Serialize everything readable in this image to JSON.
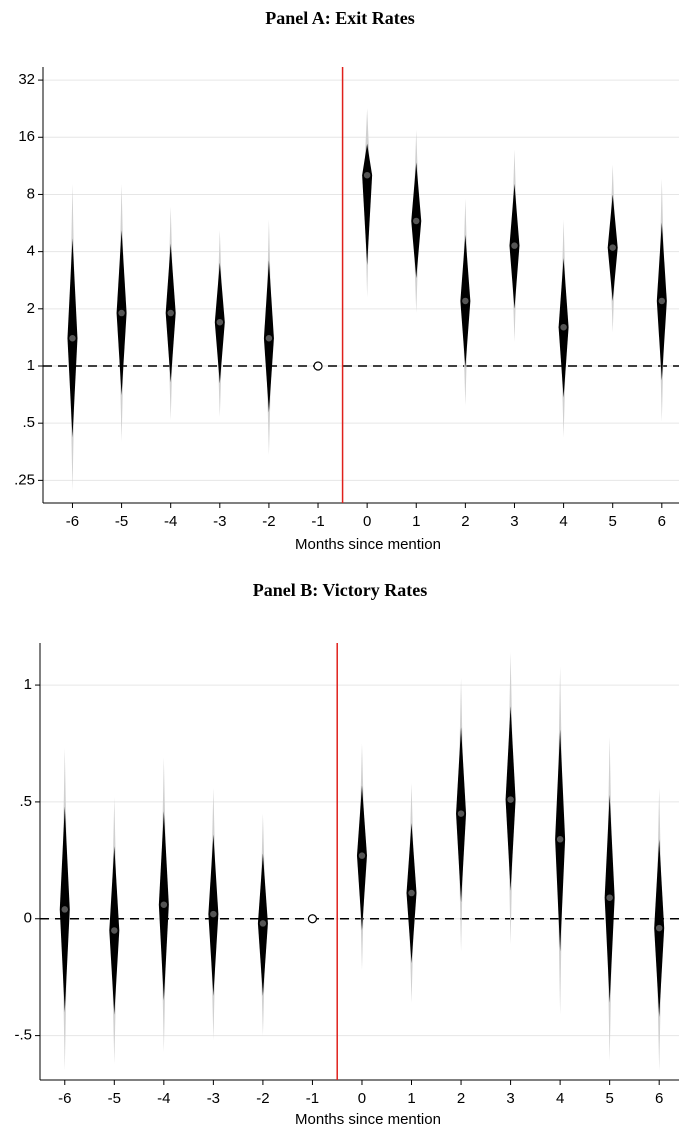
{
  "chart_data": [
    {
      "type": "interval",
      "title": "Panel A: Exit Rates",
      "x_label": "Months since mention",
      "log_y": true,
      "x": [
        -6,
        -5,
        -4,
        -3,
        -2,
        -1,
        0,
        1,
        2,
        3,
        4,
        5,
        6
      ],
      "xlim": [
        -6.6,
        6.35
      ],
      "xticks": [
        -6,
        -5,
        -4,
        -3,
        -2,
        -1,
        0,
        1,
        2,
        3,
        4,
        5,
        6
      ],
      "ylim": [
        0.19,
        37.5
      ],
      "yticks": [
        {
          "value": 0.25,
          "label": ".25"
        },
        {
          "value": 0.5,
          "label": ".5"
        },
        1,
        2,
        4,
        8,
        16,
        32
      ],
      "grid": true,
      "hline": 1,
      "vline": -0.5,
      "vline_color": "#e0201b",
      "series": [
        {
          "color": "#000000",
          "values": [
            1.4,
            1.9,
            1.9,
            1.7,
            1.4,
            1,
            10.1,
            5.8,
            2.2,
            4.3,
            1.6,
            4.2,
            2.2
          ],
          "inner_low": [
            0.42,
            0.7,
            0.82,
            0.81,
            0.57,
            null,
            3.4,
            2.9,
            0.98,
            2.0,
            0.68,
            2.2,
            0.84
          ],
          "inner_high": [
            4.7,
            5.2,
            4.4,
            3.5,
            3.6,
            null,
            14.8,
            11.8,
            4.9,
            9.1,
            3.7,
            8.0,
            5.7
          ],
          "outer_low": [
            0.22,
            0.4,
            0.52,
            0.54,
            0.34,
            null,
            2.3,
            1.9,
            0.62,
            1.34,
            0.42,
            1.5,
            0.51
          ],
          "outer_high": [
            9.1,
            9.1,
            6.9,
            5.2,
            5.9,
            null,
            22.7,
            17.5,
            7.6,
            13.8,
            5.9,
            11.5,
            9.7
          ]
        }
      ]
    },
    {
      "type": "interval",
      "title": "Panel B: Victory Rates",
      "x_label": "Months since mention",
      "log_y": false,
      "x": [
        -6,
        -5,
        -4,
        -3,
        -2,
        -1,
        0,
        1,
        2,
        3,
        4,
        5,
        6
      ],
      "xlim": [
        -6.5,
        6.4
      ],
      "xticks": [
        -6,
        -5,
        -4,
        -3,
        -2,
        -1,
        0,
        1,
        2,
        3,
        4,
        5,
        6
      ],
      "ylim": [
        -0.69,
        1.18
      ],
      "yticks": [
        {
          "value": -0.5,
          "label": "-.5"
        },
        0,
        {
          "value": 0.5,
          "label": ".5"
        },
        1
      ],
      "grid": true,
      "hline": 0,
      "vline": -0.5,
      "vline_color": "#e0201b",
      "series": [
        {
          "color": "#000000",
          "values": [
            0.04,
            -0.05,
            0.06,
            0.02,
            -0.02,
            0,
            0.27,
            0.11,
            0.45,
            0.51,
            0.34,
            0.09,
            -0.04
          ],
          "inner_low": [
            -0.4,
            -0.41,
            -0.35,
            -0.33,
            -0.33,
            null,
            -0.05,
            -0.19,
            0.07,
            0.12,
            -0.14,
            -0.36,
            -0.42
          ],
          "inner_high": [
            0.48,
            0.31,
            0.46,
            0.36,
            0.28,
            null,
            0.57,
            0.41,
            0.82,
            0.91,
            0.81,
            0.53,
            0.34
          ],
          "outer_low": [
            -0.65,
            -0.62,
            -0.57,
            -0.52,
            -0.5,
            null,
            -0.22,
            -0.36,
            -0.14,
            -0.11,
            -0.41,
            -0.61,
            -0.65
          ],
          "outer_high": [
            0.73,
            0.52,
            0.69,
            0.56,
            0.45,
            null,
            0.75,
            0.58,
            1.03,
            1.14,
            1.08,
            0.78,
            0.56
          ]
        }
      ]
    }
  ]
}
